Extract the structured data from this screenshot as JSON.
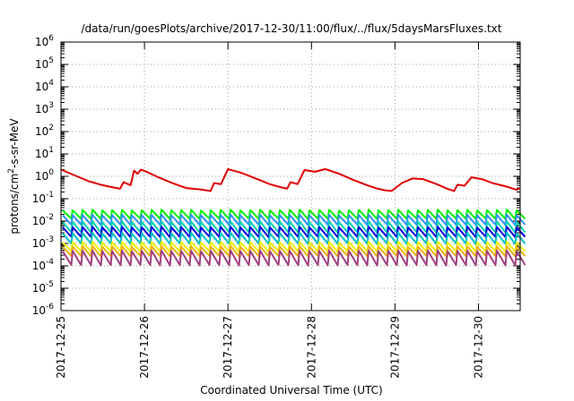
{
  "chart_data": {
    "type": "line",
    "title": "/data/run/goesPlots/archive/2017-12-30/11:00/flux/../flux/5daysMarsFluxes.txt",
    "xlabel": "Coordinated Universal Time (UTC)",
    "ylabel": {
      "base": "protons/cm",
      "sup": "2",
      "rest": "-s-sr-MeV"
    },
    "yscale": "log",
    "ylim": [
      1e-06,
      1000000.0
    ],
    "xlim": [
      "2017-12-25T00:00",
      "2017-12-30T12:00"
    ],
    "grid": true,
    "legend": "none",
    "x_ticks": [
      "2017-12-25",
      "2017-12-26",
      "2017-12-27",
      "2017-12-28",
      "2017-12-29",
      "2017-12-30"
    ],
    "y_ticks": [
      {
        "base": "10",
        "exp": "-6"
      },
      {
        "base": "10",
        "exp": "-5"
      },
      {
        "base": "10",
        "exp": "-4"
      },
      {
        "base": "10",
        "exp": "-3"
      },
      {
        "base": "10",
        "exp": "-2"
      },
      {
        "base": "10",
        "exp": "-1"
      },
      {
        "base": "10",
        "exp": "0"
      },
      {
        "base": "10",
        "exp": "1"
      },
      {
        "base": "10",
        "exp": "2"
      },
      {
        "base": "10",
        "exp": "3"
      },
      {
        "base": "10",
        "exp": "4"
      },
      {
        "base": "10",
        "exp": "5"
      },
      {
        "base": "10",
        "exp": "6"
      }
    ],
    "series": [
      {
        "color": "#e00000",
        "x": [
          "2017-12-25T00:00",
          "2017-12-25T04:00",
          "2017-12-25T08:00",
          "2017-12-25T12:00",
          "2017-12-25T15:00",
          "2017-12-25T17:00",
          "2017-12-25T18:00",
          "2017-12-25T20:00",
          "2017-12-25T21:00",
          "2017-12-25T22:00",
          "2017-12-25T23:00",
          "2017-12-26T01:00",
          "2017-12-26T04:00",
          "2017-12-26T08:00",
          "2017-12-26T12:00",
          "2017-12-26T16:00",
          "2017-12-26T19:00",
          "2017-12-26T20:00",
          "2017-12-26T22:00",
          "2017-12-27T00:00",
          "2017-12-27T04:00",
          "2017-12-27T08:00",
          "2017-12-27T12:00",
          "2017-12-27T15:00",
          "2017-12-27T17:00",
          "2017-12-27T18:00",
          "2017-12-27T20:00",
          "2017-12-27T22:00",
          "2017-12-28T01:00",
          "2017-12-28T04:00",
          "2017-12-28T08:00",
          "2017-12-28T12:00",
          "2017-12-28T16:00",
          "2017-12-28T19:00",
          "2017-12-28T21:00",
          "2017-12-28T23:00",
          "2017-12-29T02:00",
          "2017-12-29T05:00",
          "2017-12-29T08:00",
          "2017-12-29T12:00",
          "2017-12-29T15:00",
          "2017-12-29T17:00",
          "2017-12-29T18:00",
          "2017-12-29T20:00",
          "2017-12-29T22:00",
          "2017-12-30T01:00",
          "2017-12-30T04:00",
          "2017-12-30T08:00",
          "2017-12-30T11:00",
          "2017-12-30T12:00"
        ],
        "y": [
          2.0,
          1.1,
          0.6,
          0.4,
          0.32,
          0.28,
          0.55,
          0.4,
          1.8,
          1.3,
          2.0,
          1.5,
          0.9,
          0.5,
          0.3,
          0.26,
          0.22,
          0.5,
          0.45,
          2.1,
          1.4,
          0.8,
          0.45,
          0.33,
          0.28,
          0.55,
          0.45,
          1.9,
          1.6,
          2.1,
          1.3,
          0.7,
          0.4,
          0.28,
          0.24,
          0.22,
          0.5,
          0.8,
          0.75,
          0.45,
          0.28,
          0.22,
          0.42,
          0.38,
          0.9,
          0.75,
          0.5,
          0.35,
          0.25,
          0.3
        ]
      }
    ]
  }
}
